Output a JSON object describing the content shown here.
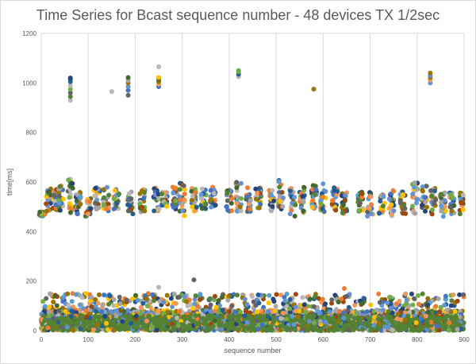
{
  "chart_data": {
    "type": "scatter",
    "title": "Time Series for Bcast sequence number - 48 devices TX 1/2sec",
    "xlabel": "sequence number",
    "ylabel": "time[ms]",
    "xlim": [
      0,
      900
    ],
    "ylim": [
      0,
      1200
    ],
    "xticks": [
      "0",
      "100",
      "200",
      "300",
      "400",
      "500",
      "600",
      "700",
      "800",
      "900"
    ],
    "yticks": [
      "0",
      "200",
      "400",
      "600",
      "800",
      "1000",
      "1200"
    ],
    "grid": "vertical",
    "legend": "none",
    "series_count": 48,
    "colors": [
      "#264478",
      "#4472C4",
      "#ED7D31",
      "#A5A5A5",
      "#FFC000",
      "#5B9BD5",
      "#70AD47",
      "#9E480E",
      "#636363",
      "#997300",
      "#255E91",
      "#43682B",
      "#698ED0",
      "#F1975A",
      "#548235",
      "#B7B7B7"
    ],
    "outliers": [
      [
        62,
        930
      ],
      [
        62,
        945
      ],
      [
        62,
        960
      ],
      [
        62,
        975
      ],
      [
        62,
        990
      ],
      [
        62,
        1005
      ],
      [
        62,
        1015
      ],
      [
        62,
        1020
      ],
      [
        150,
        965
      ],
      [
        185,
        950
      ],
      [
        185,
        970
      ],
      [
        185,
        985
      ],
      [
        185,
        1000
      ],
      [
        185,
        1010
      ],
      [
        185,
        1022
      ],
      [
        250,
        985
      ],
      [
        250,
        995
      ],
      [
        250,
        1005
      ],
      [
        250,
        1015
      ],
      [
        250,
        1022
      ],
      [
        250,
        1065
      ],
      [
        420,
        1025
      ],
      [
        420,
        1035
      ],
      [
        420,
        1045
      ],
      [
        420,
        1050
      ],
      [
        580,
        975
      ],
      [
        828,
        1000
      ],
      [
        828,
        1012
      ],
      [
        828,
        1022
      ],
      [
        828,
        1030
      ],
      [
        828,
        1040
      ],
      [
        250,
        175
      ],
      [
        325,
        205
      ],
      [
        645,
        170
      ],
      [
        95,
        150
      ],
      [
        30,
        140
      ]
    ],
    "clusters": [
      {
        "x": 2,
        "y_min": 460,
        "y_max": 480
      },
      {
        "x": 15,
        "y_min": 480,
        "y_max": 580
      },
      {
        "x": 30,
        "y_min": 470,
        "y_max": 570
      },
      {
        "x": 42,
        "y_min": 480,
        "y_max": 615
      },
      {
        "x": 62,
        "y_min": 470,
        "y_max": 615
      },
      {
        "x": 78,
        "y_min": 470,
        "y_max": 560
      },
      {
        "x": 100,
        "y_min": 460,
        "y_max": 540
      },
      {
        "x": 118,
        "y_min": 480,
        "y_max": 580
      },
      {
        "x": 138,
        "y_min": 480,
        "y_max": 580
      },
      {
        "x": 160,
        "y_min": 490,
        "y_max": 570
      },
      {
        "x": 190,
        "y_min": 470,
        "y_max": 570
      },
      {
        "x": 215,
        "y_min": 470,
        "y_max": 570
      },
      {
        "x": 245,
        "y_min": 480,
        "y_max": 580
      },
      {
        "x": 262,
        "y_min": 500,
        "y_max": 560
      },
      {
        "x": 285,
        "y_min": 490,
        "y_max": 580
      },
      {
        "x": 300,
        "y_min": 460,
        "y_max": 600
      },
      {
        "x": 325,
        "y_min": 480,
        "y_max": 580
      },
      {
        "x": 345,
        "y_min": 490,
        "y_max": 580
      },
      {
        "x": 365,
        "y_min": 490,
        "y_max": 590
      },
      {
        "x": 400,
        "y_min": 480,
        "y_max": 570
      },
      {
        "x": 420,
        "y_min": 480,
        "y_max": 600
      },
      {
        "x": 440,
        "y_min": 480,
        "y_max": 580
      },
      {
        "x": 462,
        "y_min": 490,
        "y_max": 580
      },
      {
        "x": 490,
        "y_min": 480,
        "y_max": 570
      },
      {
        "x": 510,
        "y_min": 490,
        "y_max": 615
      },
      {
        "x": 535,
        "y_min": 460,
        "y_max": 580
      },
      {
        "x": 555,
        "y_min": 470,
        "y_max": 580
      },
      {
        "x": 580,
        "y_min": 490,
        "y_max": 600
      },
      {
        "x": 600,
        "y_min": 480,
        "y_max": 605
      },
      {
        "x": 625,
        "y_min": 480,
        "y_max": 590
      },
      {
        "x": 645,
        "y_min": 470,
        "y_max": 560
      },
      {
        "x": 680,
        "y_min": 480,
        "y_max": 560
      },
      {
        "x": 700,
        "y_min": 460,
        "y_max": 560
      },
      {
        "x": 725,
        "y_min": 470,
        "y_max": 560
      },
      {
        "x": 745,
        "y_min": 460,
        "y_max": 570
      },
      {
        "x": 770,
        "y_min": 470,
        "y_max": 570
      },
      {
        "x": 795,
        "y_min": 470,
        "y_max": 600
      },
      {
        "x": 815,
        "y_min": 480,
        "y_max": 590
      },
      {
        "x": 835,
        "y_min": 470,
        "y_max": 580
      },
      {
        "x": 855,
        "y_min": 460,
        "y_max": 560
      },
      {
        "x": 875,
        "y_min": 470,
        "y_max": 560
      },
      {
        "x": 895,
        "y_min": 470,
        "y_max": 560
      }
    ],
    "bulk_band": {
      "x_range": [
        0,
        900
      ],
      "y_range": [
        0,
        150
      ],
      "typical_max": 80
    }
  }
}
